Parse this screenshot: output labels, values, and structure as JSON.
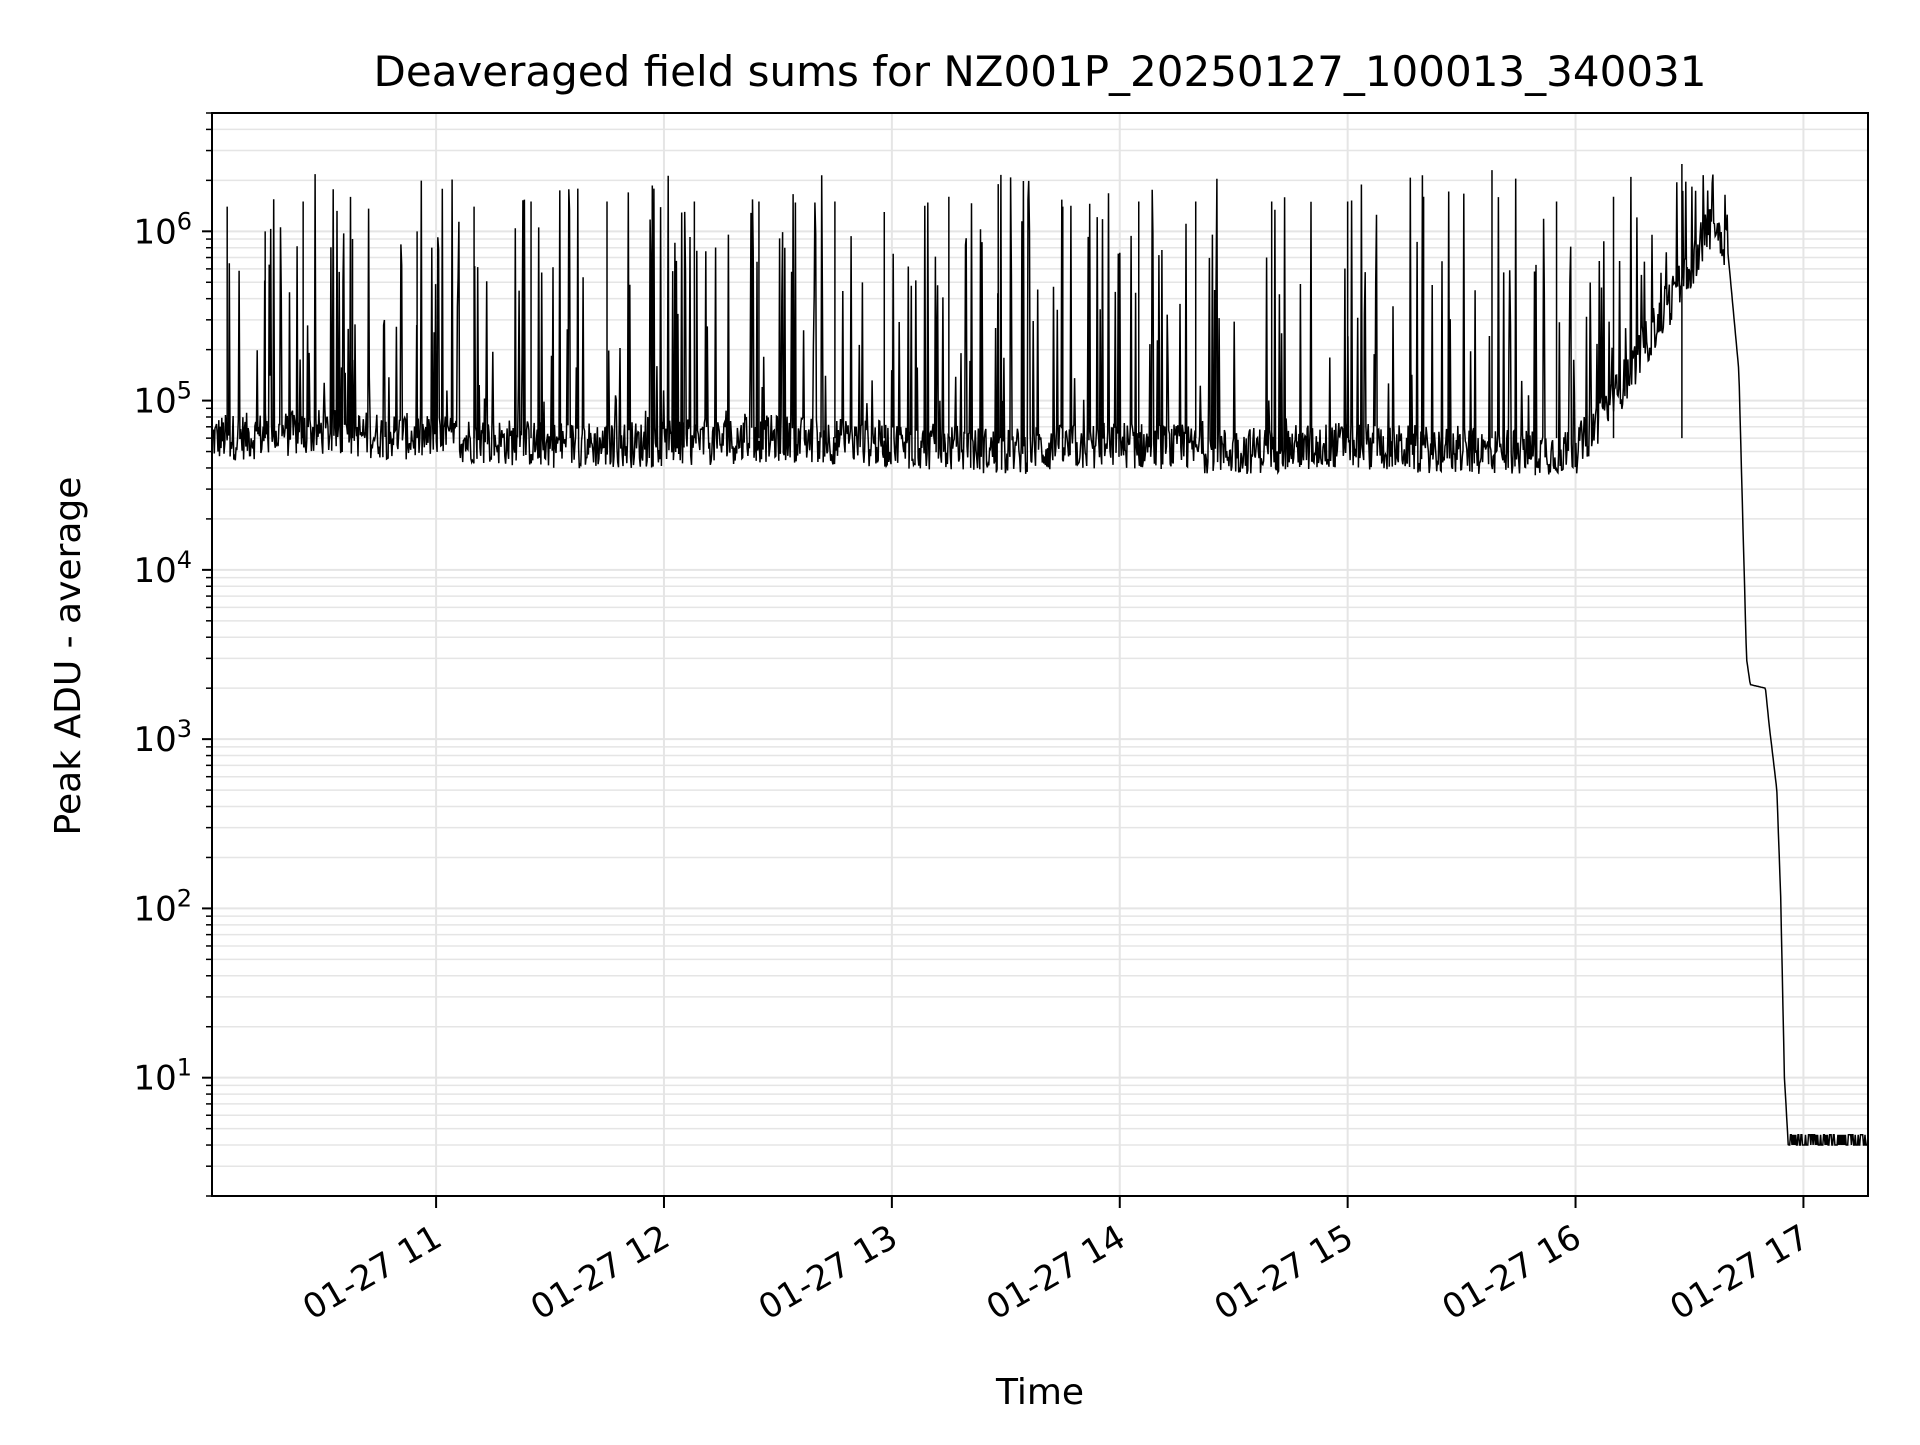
{
  "chart_data": {
    "type": "line",
    "title": "Deaveraged field sums for NZ001P_20250127_100013_340031",
    "xlabel": "Time",
    "ylabel": "Peak ADU - average",
    "x_scale": "time",
    "y_scale": "log",
    "xlim": [
      "2025-01-27 10:01",
      "2025-01-27 17:17"
    ],
    "ylim": [
      2,
      5000000
    ],
    "x_ticks": [
      {
        "value": "2025-01-27 11:00",
        "label": "01-27 11"
      },
      {
        "value": "2025-01-27 12:00",
        "label": "01-27 12"
      },
      {
        "value": "2025-01-27 13:00",
        "label": "01-27 13"
      },
      {
        "value": "2025-01-27 14:00",
        "label": "01-27 14"
      },
      {
        "value": "2025-01-27 15:00",
        "label": "01-27 15"
      },
      {
        "value": "2025-01-27 16:00",
        "label": "01-27 16"
      },
      {
        "value": "2025-01-27 17:00",
        "label": "01-27 17"
      }
    ],
    "y_ticks": [
      {
        "value": 10,
        "base": "10",
        "exp": "1"
      },
      {
        "value": 100,
        "base": "10",
        "exp": "2"
      },
      {
        "value": 1000,
        "base": "10",
        "exp": "3"
      },
      {
        "value": 10000,
        "base": "10",
        "exp": "4"
      },
      {
        "value": 100000,
        "base": "10",
        "exp": "5"
      },
      {
        "value": 1000000,
        "base": "10",
        "exp": "6"
      }
    ],
    "grid": "on (major and minor)",
    "line_color": "#000000",
    "grid_color": "#e5e5e5",
    "series": [
      {
        "x": [
          "2025-01-27 10:01",
          "2025-01-27 10:30",
          "2025-01-27 11:00",
          "2025-01-27 11:30",
          "2025-01-27 12:00",
          "2025-01-27 12:30",
          "2025-01-27 13:00",
          "2025-01-27 13:30",
          "2025-01-27 14:00",
          "2025-01-27 14:30",
          "2025-01-27 15:00",
          "2025-01-27 15:30",
          "2025-01-27 16:00",
          "2025-01-27 16:10",
          "2025-01-27 16:20",
          "2025-01-27 16:30",
          "2025-01-27 16:36",
          "2025-01-27 16:40",
          "2025-01-27 16:43",
          "2025-01-27 16:45",
          "2025-01-27 16:46",
          "2025-01-27 16:50",
          "2025-01-27 16:51",
          "2025-01-27 16:53",
          "2025-01-27 16:54",
          "2025-01-27 16:55",
          "2025-01-27 16:56",
          "2025-01-27 17:00",
          "2025-01-27 17:17"
        ],
        "y": [
          60000,
          65000,
          60000,
          55000,
          55000,
          60000,
          55000,
          50000,
          55000,
          50000,
          55000,
          50000,
          50000,
          100000,
          250000,
          600000,
          1150000,
          800000,
          150000,
          3000,
          2100,
          2000,
          1200,
          500,
          120,
          10,
          4,
          4,
          4
        ]
      }
    ],
    "spikes": {
      "x": [
        "2025-01-27 10:05",
        "2025-01-27 10:15",
        "2025-01-27 10:25",
        "2025-01-27 10:38",
        "2025-01-27 10:55",
        "2025-01-27 11:10",
        "2025-01-27 11:25",
        "2025-01-27 11:45",
        "2025-01-27 12:08",
        "2025-01-27 12:25",
        "2025-01-27 12:45",
        "2025-01-27 12:58",
        "2025-01-27 13:15",
        "2025-01-27 13:28",
        "2025-01-27 13:45",
        "2025-01-27 14:05",
        "2025-01-27 14:20",
        "2025-01-27 14:40",
        "2025-01-27 15:00",
        "2025-01-27 15:20",
        "2025-01-27 15:38",
        "2025-01-27 15:55",
        "2025-01-27 16:10",
        "2025-01-27 16:28"
      ],
      "y": [
        1400000,
        1000000,
        1500000,
        900000,
        1000000,
        1400000,
        1500000,
        1500000,
        1500000,
        1500000,
        1500000,
        1300000,
        1600000,
        1900000,
        1400000,
        1500000,
        1500000,
        1500000,
        1500000,
        1600000,
        2300000,
        1500000,
        1600000,
        2500000
      ]
    }
  }
}
